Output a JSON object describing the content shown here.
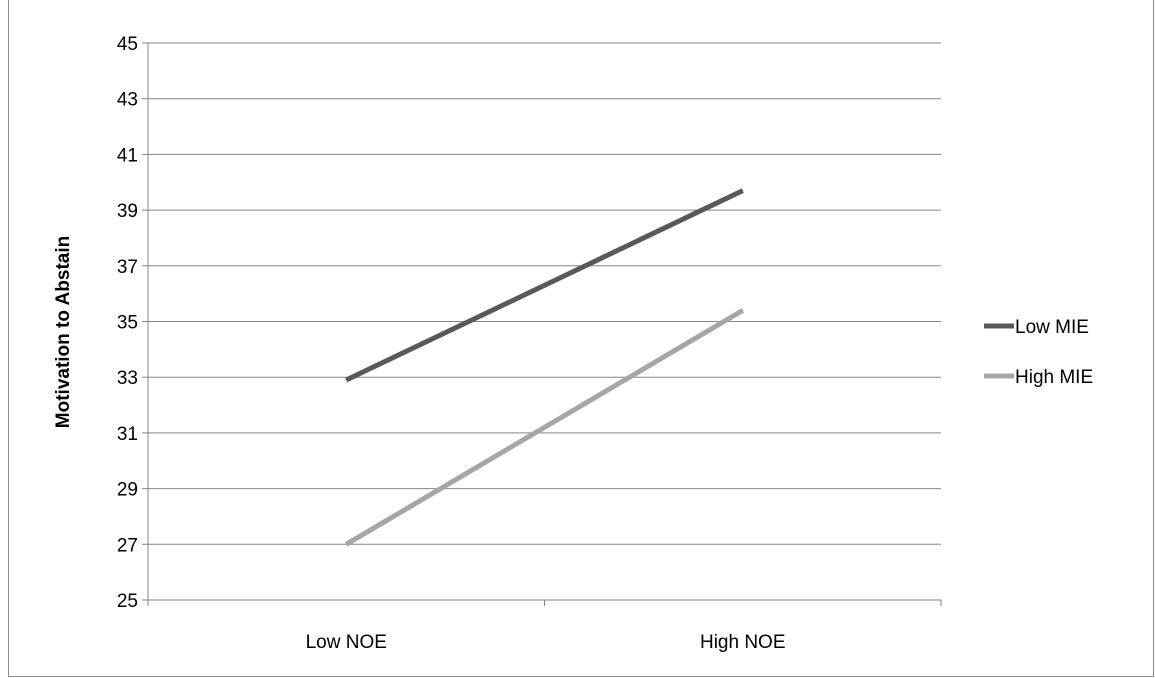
{
  "chart_data": {
    "type": "line",
    "categories": [
      "Low NOE",
      "High NOE"
    ],
    "series": [
      {
        "name": "Low MIE",
        "values": [
          32.9,
          39.7
        ],
        "color": "#595959"
      },
      {
        "name": "High MIE",
        "values": [
          27.0,
          35.4
        ],
        "color": "#a6a6a6"
      }
    ],
    "title": "",
    "xlabel": "",
    "ylabel": "Motivation to Abstain",
    "ylim": [
      25,
      45
    ],
    "yticks": [
      25,
      27,
      29,
      31,
      33,
      35,
      37,
      39,
      41,
      43,
      45
    ],
    "grid": true,
    "legend": "right",
    "gridline_color": "#868686"
  }
}
